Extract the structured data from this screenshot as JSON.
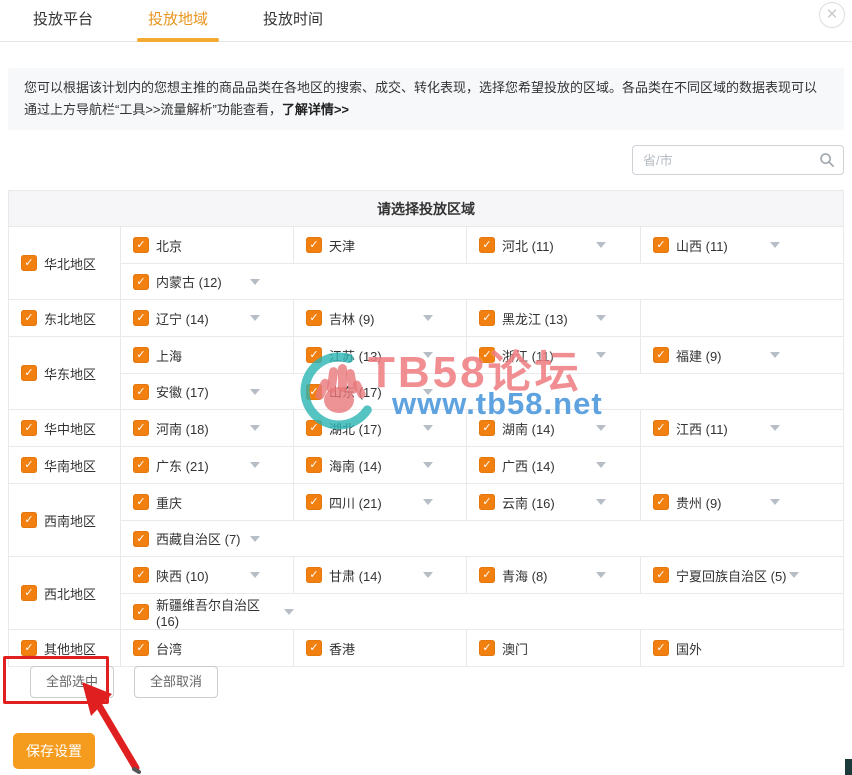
{
  "tabs": [
    {
      "label": "投放平台",
      "active": false
    },
    {
      "label": "投放地域",
      "active": true
    },
    {
      "label": "投放时间",
      "active": false
    }
  ],
  "close_label": "✕",
  "info": {
    "text": "您可以根据该计划内的您想主推的商品品类在各地区的搜索、成交、转化表现，选择您希望投放的区域。各品类在不同区域的数据表现可以通过上方导航栏“工具>>流量解析”功能查看，",
    "link": "了解详情>>"
  },
  "search": {
    "placeholder": "省/市",
    "icon": "search-icon"
  },
  "table": {
    "title": "请选择投放区域",
    "regions": [
      {
        "label": "华北地区",
        "checked": true,
        "rows": [
          [
            {
              "name": "北京",
              "checked": true,
              "arrow": false
            },
            {
              "name": "天津",
              "checked": true,
              "arrow": false
            },
            {
              "name": "河北 (11)",
              "checked": true,
              "arrow": true
            },
            {
              "name": "山西 (11)",
              "checked": true,
              "arrow": true
            }
          ],
          [
            {
              "name": "内蒙古 (12)",
              "checked": true,
              "arrow": true
            }
          ]
        ]
      },
      {
        "label": "东北地区",
        "checked": true,
        "rows": [
          [
            {
              "name": "辽宁 (14)",
              "checked": true,
              "arrow": true
            },
            {
              "name": "吉林 (9)",
              "checked": true,
              "arrow": true
            },
            {
              "name": "黑龙江 (13)",
              "checked": true,
              "arrow": true
            }
          ]
        ]
      },
      {
        "label": "华东地区",
        "checked": true,
        "rows": [
          [
            {
              "name": "上海",
              "checked": true,
              "arrow": false
            },
            {
              "name": "江苏 (13)",
              "checked": true,
              "arrow": true
            },
            {
              "name": "浙江 (11)",
              "checked": true,
              "arrow": true
            },
            {
              "name": "福建 (9)",
              "checked": true,
              "arrow": true
            }
          ],
          [
            {
              "name": "安徽 (17)",
              "checked": true,
              "arrow": true
            },
            {
              "name": "山东 (17)",
              "checked": true,
              "arrow": true
            }
          ]
        ]
      },
      {
        "label": "华中地区",
        "checked": true,
        "rows": [
          [
            {
              "name": "河南 (18)",
              "checked": true,
              "arrow": true
            },
            {
              "name": "湖北 (17)",
              "checked": true,
              "arrow": true
            },
            {
              "name": "湖南 (14)",
              "checked": true,
              "arrow": true
            },
            {
              "name": "江西 (11)",
              "checked": true,
              "arrow": true
            }
          ]
        ]
      },
      {
        "label": "华南地区",
        "checked": true,
        "rows": [
          [
            {
              "name": "广东 (21)",
              "checked": true,
              "arrow": true
            },
            {
              "name": "海南 (14)",
              "checked": true,
              "arrow": true
            },
            {
              "name": "广西 (14)",
              "checked": true,
              "arrow": true
            }
          ]
        ]
      },
      {
        "label": "西南地区",
        "checked": true,
        "rows": [
          [
            {
              "name": "重庆",
              "checked": true,
              "arrow": false
            },
            {
              "name": "四川 (21)",
              "checked": true,
              "arrow": true
            },
            {
              "name": "云南 (16)",
              "checked": true,
              "arrow": true
            },
            {
              "name": "贵州 (9)",
              "checked": true,
              "arrow": true
            }
          ],
          [
            {
              "name": "西藏自治区 (7)",
              "checked": true,
              "arrow": true
            }
          ]
        ]
      },
      {
        "label": "西北地区",
        "checked": true,
        "rows": [
          [
            {
              "name": "陕西 (10)",
              "checked": true,
              "arrow": true
            },
            {
              "name": "甘肃 (14)",
              "checked": true,
              "arrow": true
            },
            {
              "name": "青海 (8)",
              "checked": true,
              "arrow": true
            },
            {
              "name": "宁夏回族自治区 (5)",
              "checked": true,
              "arrow": true
            }
          ],
          [
            {
              "name": "新疆维吾尔自治区 (16)",
              "checked": true,
              "arrow": true
            }
          ]
        ]
      },
      {
        "label": "其他地区",
        "checked": true,
        "rows": [
          [
            {
              "name": "台湾",
              "checked": true,
              "arrow": false
            },
            {
              "name": "香港",
              "checked": true,
              "arrow": false
            },
            {
              "name": "澳门",
              "checked": true,
              "arrow": false
            },
            {
              "name": "国外",
              "checked": true,
              "arrow": false
            }
          ]
        ]
      }
    ]
  },
  "actions": {
    "select_all": "全部选中",
    "cancel_all": "全部取消"
  },
  "save_label": "保存设置",
  "watermark": {
    "title": "TB58论坛",
    "url": "www.tb58.net"
  },
  "checkmark": "✓",
  "colors": {
    "accent_orange": "#f28011",
    "tab_active": "#e9951d",
    "save_button": "#f59b1e",
    "annotation_red": "#e02020",
    "watermark_pink": "#eb6268",
    "watermark_blue": "#4292db",
    "watermark_teal": "#2ab4b2"
  }
}
